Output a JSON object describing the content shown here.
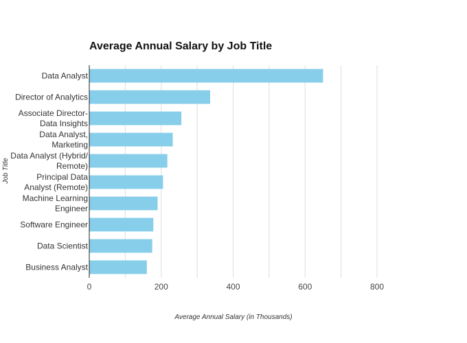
{
  "chart_data": {
    "type": "bar",
    "orientation": "horizontal",
    "title": "Average Annual Salary by Job Title",
    "xlabel": "Average Annual Salary (in Thousands)",
    "ylabel": "Job Title",
    "xlim": [
      0,
      800
    ],
    "xticks": [
      0,
      200,
      400,
      600,
      800
    ],
    "grid": true,
    "bar_color": "#87ceeb",
    "categories": [
      [
        "Data Analyst"
      ],
      [
        "Director of Analytics"
      ],
      [
        "Associate Director-",
        "Data Insights"
      ],
      [
        "Data Analyst,",
        "Marketing"
      ],
      [
        "Data Analyst (Hybrid/",
        "Remote)"
      ],
      [
        "Principal Data",
        "Analyst (Remote)"
      ],
      [
        "Machine Learning",
        "Engineer"
      ],
      [
        "Software Engineer"
      ],
      [
        "Data Scientist"
      ],
      [
        "Business Analyst"
      ]
    ],
    "values": [
      650,
      336,
      256,
      232,
      217,
      205,
      190,
      178,
      175,
      160
    ]
  }
}
